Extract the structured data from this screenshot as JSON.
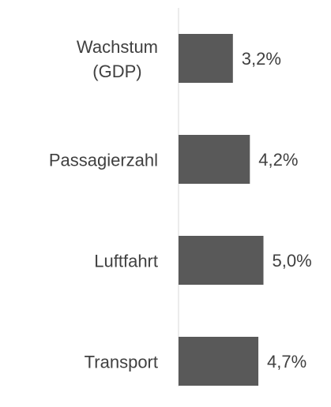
{
  "chart_data": {
    "type": "bar",
    "orientation": "horizontal",
    "categories": [
      "Wachstum\n(GDP)",
      "Passagierzahl",
      "Luftfahrt",
      "Transport"
    ],
    "values": [
      3.2,
      4.2,
      5.0,
      4.7
    ],
    "value_labels": [
      "3,2%",
      "4,2%",
      "5,0%",
      "4,7%"
    ],
    "color": "#595959"
  }
}
